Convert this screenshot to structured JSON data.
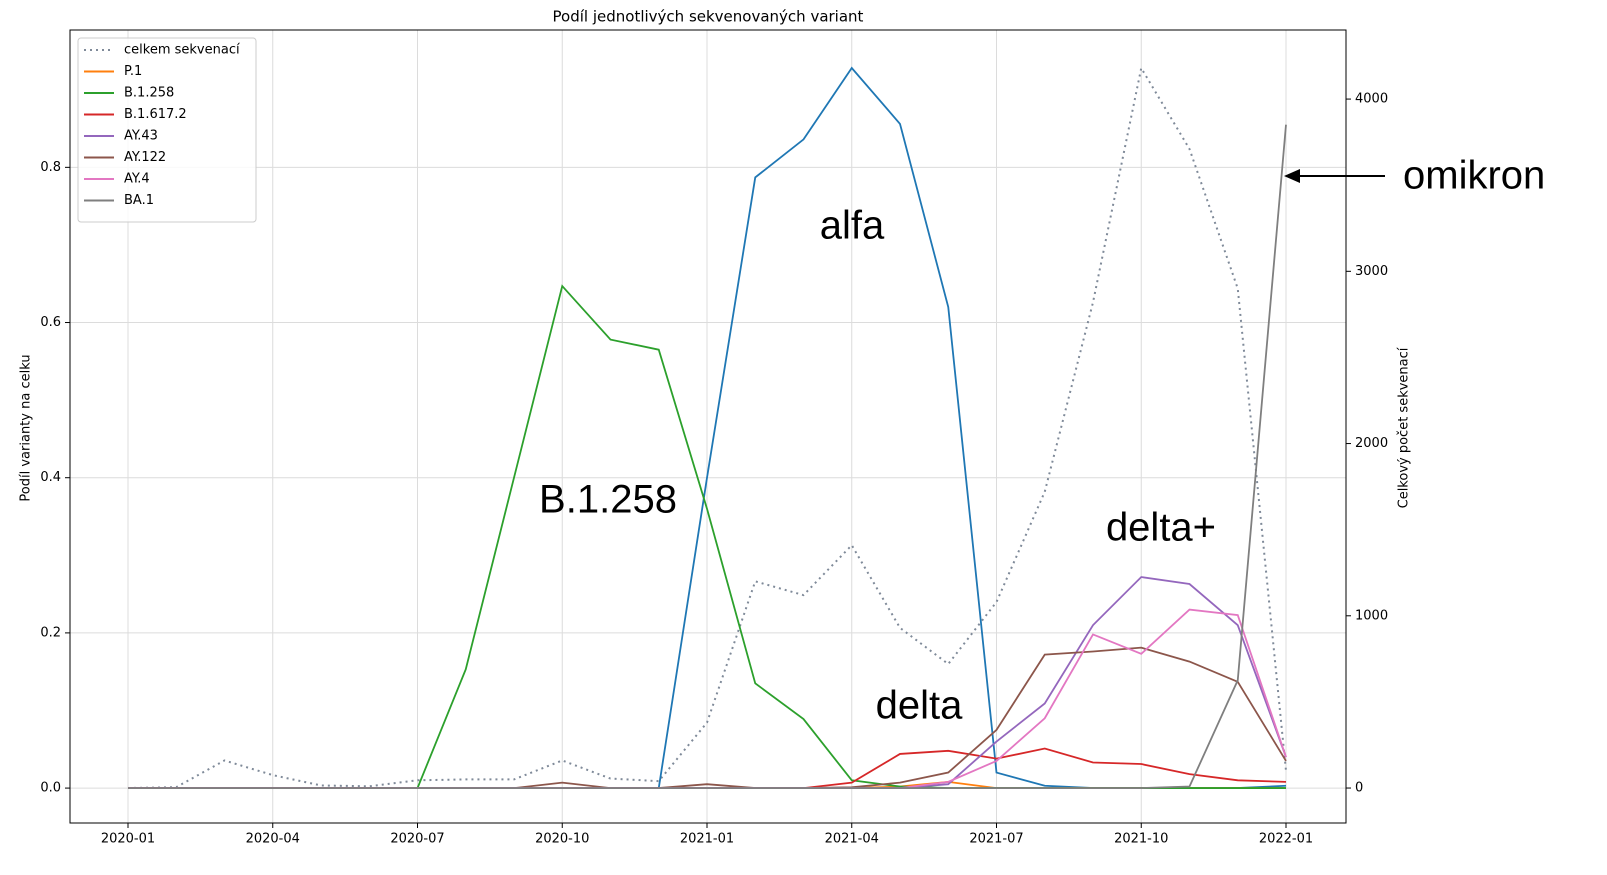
{
  "chart_data": {
    "type": "line",
    "title": "Podíl jednotlivých sekvenovaných variant",
    "y_label": "Podíl varianty na celku",
    "y2_label": "Celkový počet sekvenací",
    "x": [
      "2020-01",
      "2020-02",
      "2020-03",
      "2020-04",
      "2020-05",
      "2020-06",
      "2020-07",
      "2020-08",
      "2020-09",
      "2020-10",
      "2020-11",
      "2020-12",
      "2021-01",
      "2021-02",
      "2021-03",
      "2021-04",
      "2021-05",
      "2021-06",
      "2021-07",
      "2021-08",
      "2021-09",
      "2021-10",
      "2021-11",
      "2021-12",
      "2022-01"
    ],
    "xticks": [
      "2020-01",
      "2020-04",
      "2020-07",
      "2020-10",
      "2021-01",
      "2021-04",
      "2021-07",
      "2021-10",
      "2022-01"
    ],
    "ylim": [
      -0.045,
      0.977
    ],
    "yticks": [
      {
        "value": 0,
        "label": "0.0"
      },
      {
        "value": 0.2,
        "label": "0.2"
      },
      {
        "value": 0.4,
        "label": "0.4"
      },
      {
        "value": 0.6,
        "label": "0.6"
      },
      {
        "value": 0.8,
        "label": "0.8"
      }
    ],
    "y2lim": [
      -203,
      4401
    ],
    "y2ticks": [
      0,
      1000,
      2000,
      3000,
      4000
    ],
    "grid": true,
    "legend": "upper left",
    "series": [
      {
        "name": "celkem sekvenací",
        "color": "#7f8a99",
        "dash": "dotted",
        "axis": "y2",
        "values": [
          0,
          5,
          160,
          75,
          15,
          10,
          45,
          50,
          50,
          160,
          55,
          40,
          380,
          1200,
          1120,
          1410,
          930,
          720,
          1080,
          1720,
          2820,
          4180,
          3710,
          2900,
          100
        ]
      },
      {
        "color": "#1f77b4",
        "values": [
          0,
          0,
          0,
          0,
          0,
          0,
          0,
          0,
          0,
          0,
          0,
          0,
          0.4,
          0.787,
          0.836,
          0.928,
          0.856,
          0.62,
          0.02,
          0.003,
          0,
          0,
          0,
          0,
          0.003
        ]
      },
      {
        "name": "P.1",
        "color": "#ff7f0e",
        "values": [
          0,
          0,
          0,
          0,
          0,
          0,
          0,
          0,
          0,
          0,
          0,
          0,
          0,
          0,
          0,
          0,
          0.002,
          0.008,
          0,
          0,
          0,
          0,
          0,
          0,
          0
        ]
      },
      {
        "name": "B.1.258",
        "color": "#2ca02c",
        "values": [
          0,
          0,
          0,
          0,
          0,
          0,
          0,
          0.153,
          0.4,
          0.647,
          0.578,
          0.565,
          0.36,
          0.135,
          0.089,
          0.01,
          0.002,
          0,
          0,
          0,
          0,
          0,
          0,
          0,
          0
        ]
      },
      {
        "name": "B.1.617.2",
        "color": "#d62728",
        "values": [
          0,
          0,
          0,
          0,
          0,
          0,
          0,
          0,
          0,
          0,
          0,
          0,
          0,
          0,
          0,
          0.007,
          0.044,
          0.048,
          0.038,
          0.051,
          0.033,
          0.031,
          0.018,
          0.01,
          0.008
        ]
      },
      {
        "name": "AY.43",
        "color": "#9467bd",
        "values": [
          0,
          0,
          0,
          0,
          0,
          0,
          0,
          0,
          0,
          0,
          0,
          0,
          0,
          0,
          0,
          0,
          0,
          0.005,
          0.06,
          0.109,
          0.21,
          0.272,
          0.263,
          0.21,
          0.04
        ]
      },
      {
        "name": "AY.122",
        "color": "#8c564b",
        "values": [
          0,
          0,
          0,
          0,
          0,
          0,
          0,
          0,
          0,
          0.007,
          0,
          0,
          0.005,
          0,
          0,
          0.001,
          0.007,
          0.02,
          0.075,
          0.172,
          0.176,
          0.181,
          0.163,
          0.137,
          0.035
        ]
      },
      {
        "name": "AY.4",
        "color": "#e377c2",
        "values": [
          0,
          0,
          0,
          0,
          0,
          0,
          0,
          0,
          0,
          0,
          0,
          0,
          0,
          0,
          0,
          0,
          0,
          0.008,
          0.035,
          0.09,
          0.198,
          0.173,
          0.23,
          0.223,
          0.04
        ]
      },
      {
        "name": "BA.1",
        "color": "#7f7f7f",
        "values": [
          0,
          0,
          0,
          0,
          0,
          0,
          0,
          0,
          0,
          0,
          0,
          0,
          0,
          0,
          0,
          0,
          0,
          0,
          0,
          0,
          0,
          0,
          0.002,
          0.139,
          0.855
        ]
      }
    ],
    "annotations": [
      {
        "text": "alfa",
        "color": "#4a8fc4"
      },
      {
        "text": "B.1.258",
        "color": "#2ca02c"
      },
      {
        "text": "delta",
        "color": "#e88a8a"
      },
      {
        "text": "delta+",
        "color": "#cc66ee"
      },
      {
        "text": "omikron",
        "color": "#3b5e23"
      }
    ]
  }
}
